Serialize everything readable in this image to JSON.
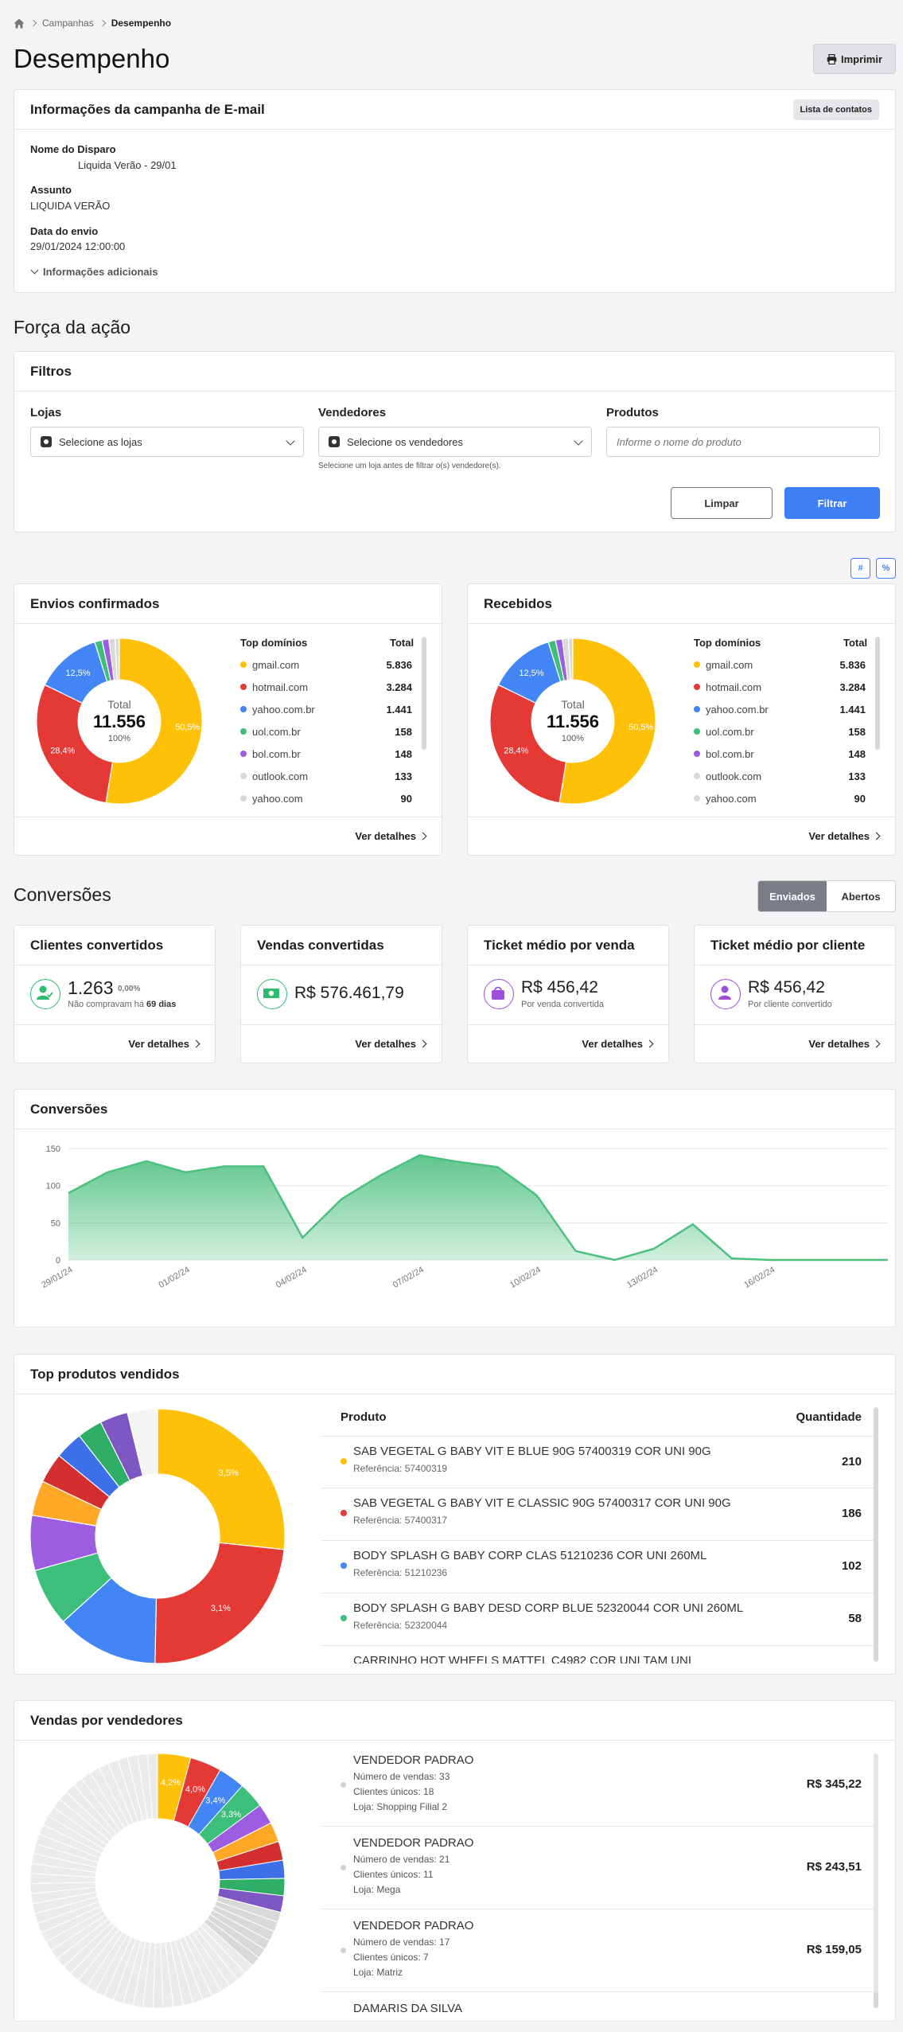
{
  "breadcrumb": {
    "items": [
      "Campanhas",
      "Desempenho"
    ]
  },
  "page": {
    "title": "Desempenho",
    "print_label": "Imprimir"
  },
  "info": {
    "title": "Informações da campanha de E-mail",
    "contacts_button": "Lista de contatos",
    "fields": [
      {
        "label": "Nome do Disparo",
        "value": "Liquida Verão - 29/01"
      },
      {
        "label": "Assunto",
        "value": "LIQUIDA VERÃO"
      },
      {
        "label": "Data do envio",
        "value": "29/01/2024 12:00:00"
      }
    ],
    "more_label": "Informações adicionais"
  },
  "forca": {
    "title": "Força da ação"
  },
  "filters": {
    "title": "Filtros",
    "stores_label": "Lojas",
    "stores_placeholder": "Selecione as lojas",
    "sellers_label": "Vendedores",
    "sellers_placeholder": "Selecione os vendedores",
    "sellers_hint": "Selecione um loja antes de filtrar o(s) vendedore(s).",
    "products_label": "Produtos",
    "products_placeholder": "Informe o nome do produto",
    "clear_label": "Limpar",
    "filter_label": "Filtrar"
  },
  "toggle": {
    "hash": "#",
    "percent": "%"
  },
  "donut_cards": [
    {
      "title": "Envios confirmados",
      "center_label": "Total",
      "center_value": "11.556",
      "center_pct": "100%",
      "header_domain": "Top domínios",
      "header_total": "Total",
      "details": "Ver detalhes",
      "slice_labels": [
        "50,5%",
        "28,4%",
        "12,5%"
      ],
      "domains": [
        {
          "name": "gmail.com",
          "value": "5.836",
          "color": "#FFC107"
        },
        {
          "name": "hotmail.com",
          "value": "3.284",
          "color": "#E53935"
        },
        {
          "name": "yahoo.com.br",
          "value": "1.441",
          "color": "#4285F4"
        },
        {
          "name": "uol.com.br",
          "value": "158",
          "color": "#3DBE7A"
        },
        {
          "name": "bol.com.br",
          "value": "148",
          "color": "#9C5DE0"
        },
        {
          "name": "outlook.com",
          "value": "133",
          "color": "#D9D9D9"
        },
        {
          "name": "yahoo.com",
          "value": "90",
          "color": "#D9D9D9"
        }
      ]
    },
    {
      "title": "Recebidos",
      "center_label": "Total",
      "center_value": "11.556",
      "center_pct": "100%",
      "header_domain": "Top domínios",
      "header_total": "Total",
      "details": "Ver detalhes",
      "slice_labels": [
        "50,5%",
        "28,4%",
        "12,5%"
      ],
      "domains": [
        {
          "name": "gmail.com",
          "value": "5.836",
          "color": "#FFC107"
        },
        {
          "name": "hotmail.com",
          "value": "3.284",
          "color": "#E53935"
        },
        {
          "name": "yahoo.com.br",
          "value": "1.441",
          "color": "#4285F4"
        },
        {
          "name": "uol.com.br",
          "value": "158",
          "color": "#3DBE7A"
        },
        {
          "name": "bol.com.br",
          "value": "148",
          "color": "#9C5DE0"
        },
        {
          "name": "outlook.com",
          "value": "133",
          "color": "#D9D9D9"
        },
        {
          "name": "yahoo.com",
          "value": "90",
          "color": "#D9D9D9"
        }
      ]
    }
  ],
  "conversoes": {
    "title": "Conversões",
    "tab_sent": "Enviados",
    "tab_open": "Abertos"
  },
  "kpis": [
    {
      "title": "Clientes convertidos",
      "value": "1.263",
      "badge": "0,00%",
      "sub_prefix": "Não compravam há ",
      "sub_bold": "69 dias",
      "details": "Ver detalhes",
      "icon_color": "#2ebd6e"
    },
    {
      "title": "Vendas convertidas",
      "value": "R$ 576.461,79",
      "details": "Ver detalhes",
      "icon_color": "#2ebd6e"
    },
    {
      "title": "Ticket médio por venda",
      "value": "R$ 456,42",
      "sub": "Por venda convertida",
      "details": "Ver detalhes",
      "icon_color": "#9c4fd8"
    },
    {
      "title": "Ticket médio por cliente",
      "value": "R$ 456,42",
      "sub": "Por cliente convertido",
      "details": "Ver detalhes",
      "icon_color": "#9c4fd8"
    }
  ],
  "chart_data": {
    "type": "area",
    "title": "Conversões",
    "x": [
      "29/01/24",
      "30/01/24",
      "31/01/24",
      "01/02/24",
      "02/02/24",
      "03/02/24",
      "04/02/24",
      "05/02/24",
      "06/02/24",
      "07/02/24",
      "08/02/24",
      "09/02/24",
      "10/02/24",
      "11/02/24",
      "12/02/24",
      "13/02/24",
      "14/02/24",
      "15/02/24",
      "16/02/24",
      "17/02/24",
      "18/02/24",
      "19/02/24"
    ],
    "x_tick_labels": [
      "29/01/24",
      "01/02/24",
      "04/02/24",
      "07/02/24",
      "10/02/24",
      "13/02/24",
      "16/02/24"
    ],
    "values": [
      90,
      118,
      133,
      118,
      126,
      126,
      30,
      82,
      114,
      141,
      132,
      125,
      87,
      12,
      0,
      15,
      48,
      2,
      0,
      0,
      0,
      0
    ],
    "ylim": [
      0,
      150
    ],
    "y_ticks": [
      "0",
      "50",
      "100",
      "150"
    ],
    "grid": true,
    "color": "#4CC07E"
  },
  "top_products": {
    "title": "Top produtos vendidos",
    "col_product": "Produto",
    "col_qty": "Quantidade",
    "slice_labels": [
      "3,5%",
      "3,1%"
    ],
    "slice_values": [
      210,
      186,
      102,
      58,
      55,
      35,
      30,
      28,
      25,
      28,
      30
    ],
    "slice_colors": [
      "#FFC107",
      "#E53935",
      "#4285F4",
      "#3DBE7A",
      "#9C5DE0",
      "#FFA726",
      "#D32F2F",
      "#3D6FE8",
      "#2EAE66",
      "#7E57C2",
      "#F5F5F5"
    ],
    "rows": [
      {
        "name": "SAB VEGETAL G BABY VIT E BLUE 90G 57400319 COR UNI 90G",
        "ref": "Referência: 57400319",
        "qty": "210",
        "color": "#FFC107"
      },
      {
        "name": "SAB VEGETAL G BABY VIT E CLASSIC 90G 57400317 COR UNI 90G",
        "ref": "Referência: 57400317",
        "qty": "186",
        "color": "#E53935"
      },
      {
        "name": "BODY SPLASH G BABY CORP CLAS 51210236 COR UNI 260ML",
        "ref": "Referência: 51210236",
        "qty": "102",
        "color": "#4285F4"
      },
      {
        "name": "BODY SPLASH G BABY DESD CORP BLUE 52320044 COR UNI 260ML",
        "ref": "Referência: 52320044",
        "qty": "58",
        "color": "#3DBE7A"
      },
      {
        "name": "CARRINHO HOT WHEELS MATTEL C4982 COR UNI TAM UNI",
        "ref": "",
        "qty": "",
        "color": "#9C5DE0"
      }
    ]
  },
  "sellers": {
    "title": "Vendas por vendedores",
    "slice_labels": [
      "4,2%",
      "4,0%",
      "3,4%",
      "3,3%"
    ],
    "rows": [
      {
        "name": "VENDEDOR PADRAO",
        "sales": "Número de vendas: 33",
        "clients": "Clientes únicos: 18",
        "store": "Loja: Shopping Filial 2",
        "value": "R$ 345,22"
      },
      {
        "name": "VENDEDOR PADRAO",
        "sales": "Número de vendas: 21",
        "clients": "Clientes únicos: 11",
        "store": "Loja: Mega",
        "value": "R$ 243,51"
      },
      {
        "name": "VENDEDOR PADRAO",
        "sales": "Número de vendas: 17",
        "clients": "Clientes únicos: 7",
        "store": "Loja: Matriz",
        "value": "R$ 159,05"
      },
      {
        "name": "DAMARIS DA SILVA",
        "sales": "",
        "clients": "",
        "store": "",
        "value": ""
      }
    ]
  }
}
